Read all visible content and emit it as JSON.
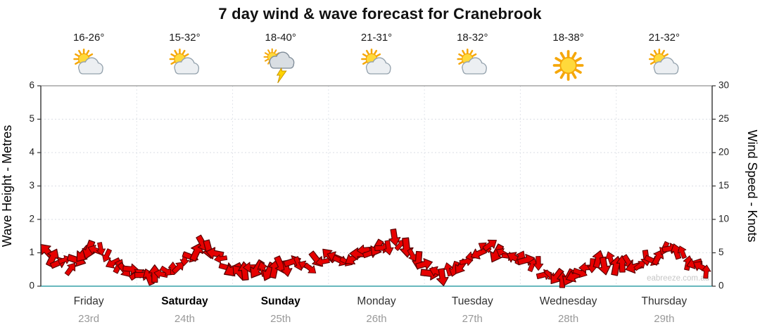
{
  "title": "7 day wind & wave forecast for Cranebrook",
  "chart_data": {
    "type": "area",
    "title": "7 day wind & wave forecast for Cranebrook",
    "legend": "none",
    "grid": true,
    "watermark": "eabreeze.com.au",
    "baseline_color": "#53aeb4",
    "left_axis": {
      "label": "Wave Height - Metres",
      "range": [
        0,
        6
      ],
      "ticks": [
        0,
        1,
        2,
        3,
        4,
        5,
        6
      ]
    },
    "right_axis": {
      "label": "Wind Speed - Knots",
      "range": [
        0,
        30
      ],
      "ticks": [
        0,
        5,
        10,
        15,
        20,
        25,
        30
      ]
    },
    "days": [
      {
        "name": "Friday",
        "date": "23rd",
        "temperature": "16-26°",
        "icon": "sun-cloud-icon",
        "weekend": false
      },
      {
        "name": "Saturday",
        "date": "24th",
        "temperature": "15-32°",
        "icon": "sun-cloud-icon",
        "weekend": true
      },
      {
        "name": "Sunday",
        "date": "25th",
        "temperature": "18-40°",
        "icon": "storm-icon",
        "weekend": true
      },
      {
        "name": "Monday",
        "date": "26th",
        "temperature": "21-31°",
        "icon": "sun-cloud-icon",
        "weekend": false
      },
      {
        "name": "Tuesday",
        "date": "27th",
        "temperature": "18-32°",
        "icon": "sun-cloud-icon",
        "weekend": false
      },
      {
        "name": "Wednesday",
        "date": "28th",
        "temperature": "18-38°",
        "icon": "sun-icon",
        "weekend": false
      },
      {
        "name": "Thursday",
        "date": "29th",
        "temperature": "21-32°",
        "icon": "sun-cloud-icon",
        "weekend": false
      }
    ],
    "series": [
      {
        "name": "Wind Speed",
        "unit": "knots",
        "axis": "right",
        "color": "#e60000",
        "outline_color": "#5a0000",
        "points_per_day": 8,
        "values": [
          5.0,
          3.8,
          2.8,
          4.8,
          5.5,
          4.2,
          2.8,
          2.2,
          2.0,
          1.6,
          2.4,
          3.0,
          4.2,
          6.5,
          5.2,
          3.2,
          1.8,
          2.6,
          3.0,
          2.6,
          3.0,
          3.4,
          3.0,
          3.8,
          4.2,
          3.8,
          4.4,
          4.8,
          6.0,
          7.0,
          5.5,
          3.8,
          1.8,
          1.2,
          2.3,
          3.8,
          5.2,
          5.8,
          4.8,
          4.2,
          4.2,
          3.2,
          1.4,
          0.8,
          1.8,
          3.2,
          4.2,
          3.8,
          3.2,
          2.8,
          3.8,
          4.8,
          5.5,
          5.0,
          3.2,
          1.8
        ]
      }
    ]
  }
}
